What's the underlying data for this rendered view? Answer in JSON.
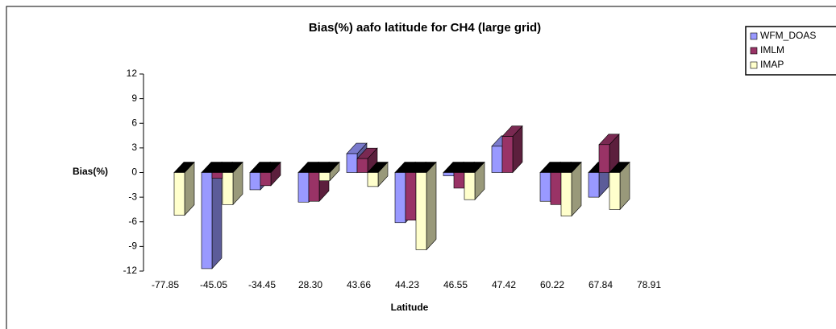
{
  "chart_data": {
    "type": "bar3d",
    "title": "Bias(%) aafo latitude for CH4 (large grid)",
    "x_label": "Latitude",
    "y_label": "Bias(%)",
    "categories": [
      "-77.85",
      "-45.05",
      "-34.45",
      "28.30",
      "43.66",
      "44.23",
      "46.55",
      "47.42",
      "60.22",
      "67.84",
      "78.91"
    ],
    "series": [
      {
        "name": "WFM_DOAS",
        "color": "#9999ff",
        "values": [
          null,
          -11.7,
          -2.1,
          -3.6,
          2.3,
          -6.1,
          -0.4,
          3.2,
          -3.5,
          -3.0,
          null
        ]
      },
      {
        "name": "IMLM",
        "color": "#993366",
        "values": [
          null,
          -0.7,
          -1.6,
          -3.5,
          1.7,
          -5.8,
          -1.9,
          4.4,
          -3.9,
          3.4,
          null
        ]
      },
      {
        "name": "IMAP",
        "color": "#ffffcc",
        "values": [
          -5.2,
          -3.9,
          null,
          -1.0,
          -1.7,
          -9.4,
          -3.3,
          null,
          -5.3,
          -4.5,
          null
        ]
      }
    ],
    "ylim": [
      -12,
      12
    ],
    "yticks": [
      -12,
      -9,
      -6,
      -3,
      0,
      3,
      6,
      9,
      12
    ],
    "legend": "top-right"
  }
}
